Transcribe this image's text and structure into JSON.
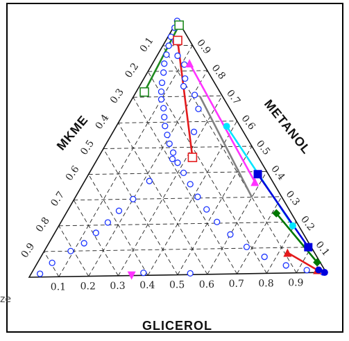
{
  "chart_data": {
    "type": "scatter",
    "subtype": "ternary-phase-diagram",
    "axes": {
      "bottom": {
        "label": "GLICEROL",
        "ticks": [
          "0.1",
          "0.2",
          "0.3",
          "0.4",
          "0.5",
          "0.6",
          "0.7",
          "0.8",
          "0.9"
        ]
      },
      "right": {
        "label": "METANOL",
        "ticks": [
          "0.9",
          "0.8",
          "0.7",
          "0.6",
          "0.5",
          "0.4",
          "0.3",
          "0.2",
          "0.1"
        ]
      },
      "left": {
        "label": "MKME",
        "ticks": [
          "0.1",
          "0.2",
          "0.3",
          "0.4",
          "0.5",
          "0.6",
          "0.7",
          "0.8",
          "0.9"
        ]
      }
    },
    "grid": true,
    "binodal_points": [
      [
        0.0,
        0.997
      ],
      [
        0.005,
        0.97
      ],
      [
        0.01,
        0.935
      ],
      [
        0.02,
        0.9
      ],
      [
        0.03,
        0.865
      ],
      [
        0.04,
        0.83
      ],
      [
        0.055,
        0.795
      ],
      [
        0.07,
        0.755
      ],
      [
        0.085,
        0.72
      ],
      [
        0.1,
        0.69
      ],
      [
        0.125,
        0.655
      ],
      [
        0.145,
        0.62
      ],
      [
        0.165,
        0.585
      ],
      [
        0.19,
        0.55
      ],
      [
        0.215,
        0.515
      ],
      [
        0.245,
        0.48
      ],
      [
        0.28,
        0.44
      ],
      [
        0.32,
        0.4
      ],
      [
        0.365,
        0.355
      ],
      [
        0.415,
        0.305
      ],
      [
        0.47,
        0.255
      ],
      [
        0.53,
        0.205
      ],
      [
        0.6,
        0.155
      ],
      [
        0.68,
        0.105
      ],
      [
        0.76,
        0.065
      ],
      [
        0.85,
        0.03
      ],
      [
        0.93,
        0.01
      ],
      [
        0.99,
        0.0
      ],
      [
        0.38,
        0.01
      ],
      [
        0.54,
        0.005
      ],
      [
        0.03,
        0.013
      ],
      [
        0.035,
        0.915
      ],
      [
        0.07,
        0.86
      ],
      [
        0.11,
        0.825
      ],
      [
        0.14,
        0.77
      ],
      [
        0.15,
        0.74
      ],
      [
        0.205,
        0.705
      ],
      [
        0.245,
        0.65
      ],
      [
        0.275,
        0.56
      ],
      [
        0.255,
        0.455
      ],
      [
        0.22,
        0.37
      ],
      [
        0.2,
        0.3
      ],
      [
        0.175,
        0.255
      ],
      [
        0.16,
        0.21
      ],
      [
        0.14,
        0.17
      ],
      [
        0.12,
        0.13
      ],
      [
        0.09,
        0.1
      ],
      [
        0.05,
        0.055
      ]
    ],
    "tie_lines": [
      {
        "color": "#1f8a1f",
        "marker": "square-open",
        "a": [
          0.015,
          0.98
        ],
        "b": [
          0.028,
          0.72
        ]
      },
      {
        "color": "#e31a1c",
        "marker": "square-open",
        "a": [
          0.04,
          0.92
        ],
        "b": [
          0.32,
          0.46
        ]
      },
      {
        "color": "#ff33ff",
        "marker": "triangle",
        "a": [
          0.125,
          0.83
        ],
        "b": [
          0.58,
          0.36
        ]
      },
      {
        "color": "#808080",
        "marker": "none",
        "a": [
          0.225,
          0.7
        ],
        "b": [
          0.6,
          0.3
        ]
      },
      {
        "color": "#00e5ff",
        "marker": "circle",
        "a": [
          0.375,
          0.58
        ],
        "b": [
          0.795,
          0.185
        ]
      },
      {
        "color": "#0000dd",
        "marker": "square",
        "a": [
          0.575,
          0.39
        ],
        "b": [
          0.89,
          0.1
        ]
      },
      {
        "color": "#007700",
        "marker": "diamond",
        "a": [
          0.715,
          0.235
        ],
        "b": [
          0.95,
          0.04
        ]
      },
      {
        "color": "#e31a1c",
        "marker": "triangle",
        "a": [
          0.83,
          0.08
        ],
        "b": [
          0.965,
          0.01
        ]
      },
      {
        "color": "#0000dd",
        "marker": "circle",
        "a": [
          0.97,
          0.01
        ],
        "b": [
          0.995,
          0.0
        ]
      }
    ],
    "isolated_marker": {
      "color": "#ff33ff",
      "shape": "triangle-down",
      "point": [
        0.345,
        0.0
      ]
    }
  },
  "cut_off_text": "ze"
}
